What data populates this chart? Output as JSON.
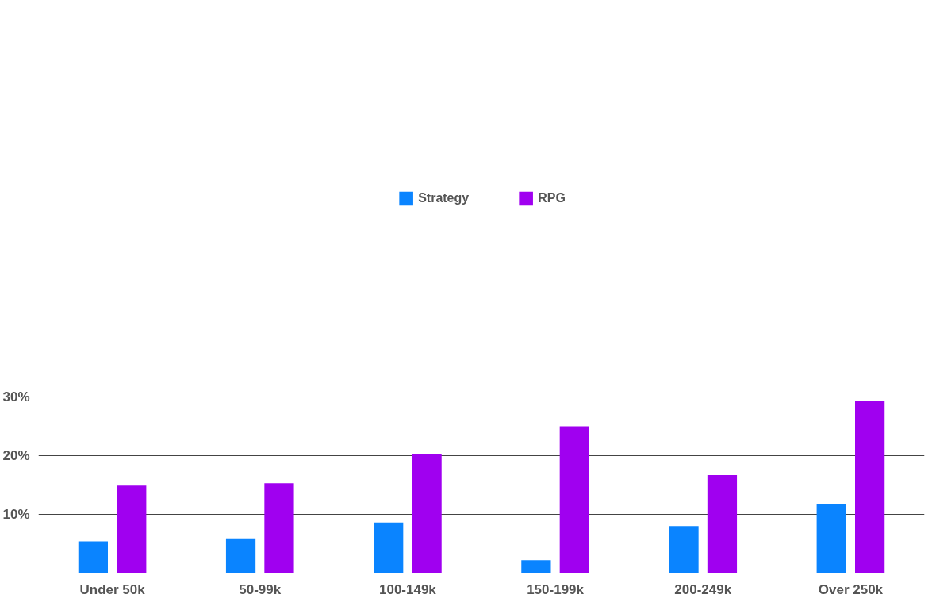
{
  "chart_data": {
    "type": "bar",
    "categories": [
      "Under 50k",
      "50-99k",
      "100-149k",
      "150-199k",
      "200-249k",
      "Over 250k"
    ],
    "series": [
      {
        "name": "Strategy",
        "color": "#0a84ff",
        "values": [
          5.4,
          5.9,
          8.6,
          2.2,
          8.0,
          11.7
        ]
      },
      {
        "name": "RPG",
        "color": "#a000f0",
        "values": [
          14.9,
          15.3,
          20.2,
          25.0,
          16.7,
          29.4
        ]
      }
    ],
    "ylim": [
      0,
      30
    ],
    "yticks": [
      {
        "value": 10,
        "label": "10%"
      },
      {
        "value": 20,
        "label": "20%"
      },
      {
        "value": 30,
        "label": "30%"
      }
    ],
    "grid": "y",
    "legend": "top"
  }
}
